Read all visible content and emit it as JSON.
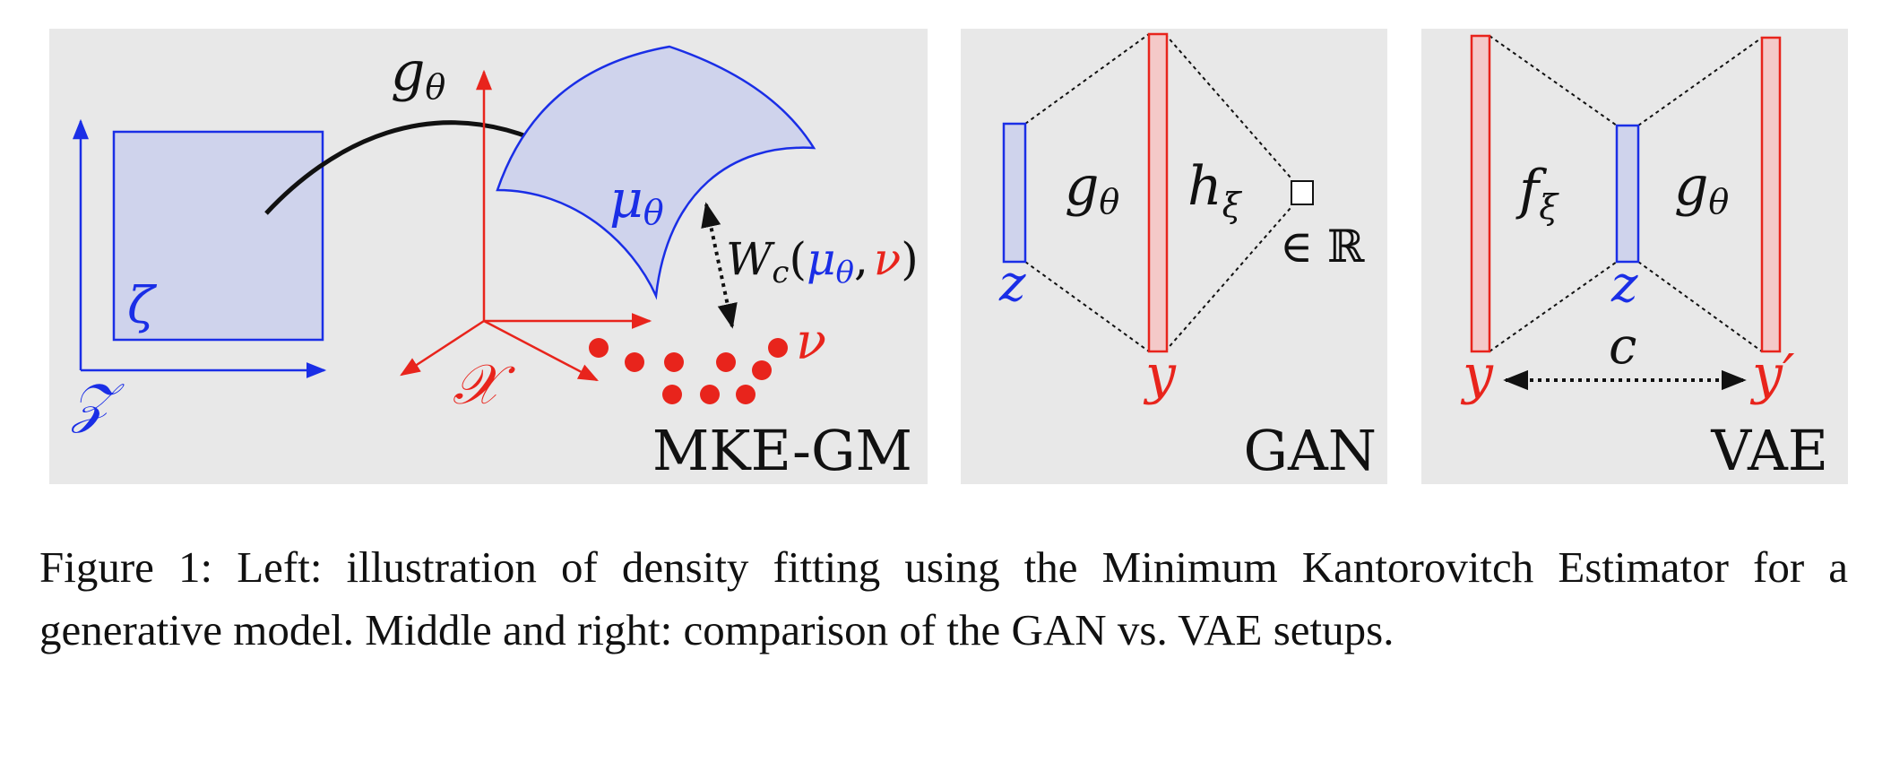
{
  "colors": {
    "panel_bg": "#e8e8e8",
    "blue": "#1a2ee6",
    "red": "#e8241c",
    "fill_blue": "#cfd3ec",
    "fill_red": "#f4c9c8",
    "black": "#111111"
  },
  "panels": {
    "left": {
      "label": "MKE-GM",
      "latent_space": "𝒵",
      "latent_dist": "ζ",
      "map": "g",
      "map_sub": "θ",
      "model_dist": "μ",
      "model_sub": "θ",
      "data_space": "𝒳",
      "data_dist": "ν",
      "distance": {
        "W": "W",
        "c": "c",
        "open": "(",
        "mu": "μ",
        "theta": "θ",
        "comma": ",",
        "nu": "ν",
        "close": ")"
      }
    },
    "middle": {
      "label": "GAN",
      "z": "z",
      "y": "y",
      "g": "g",
      "g_sub": "θ",
      "h": "h",
      "h_sub": "ξ",
      "output": "∈ ℝ"
    },
    "right": {
      "label": "VAE",
      "y": "y",
      "y_prime": "y′",
      "z": "z",
      "f": "f",
      "f_sub": "ξ",
      "g": "g",
      "g_sub": "θ",
      "cost": "c"
    }
  },
  "caption": "Figure 1:  Left: illustration of density fitting using the Minimum Kantorovitch Estimator for a generative model.  Middle and right: comparison of the GAN vs.  VAE setups."
}
